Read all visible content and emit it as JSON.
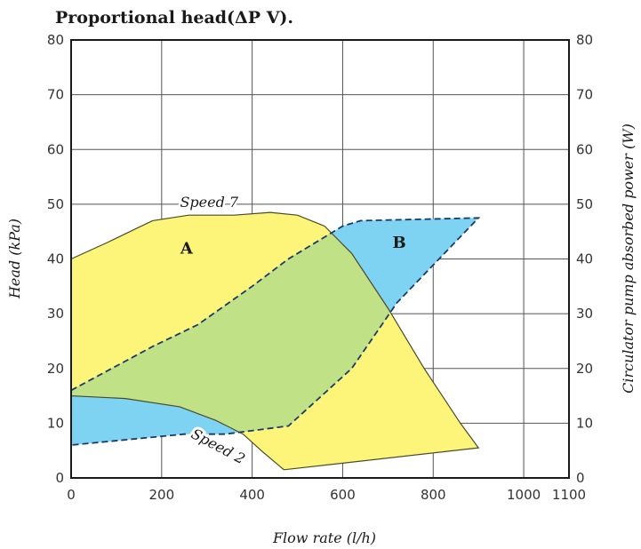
{
  "chart_data": {
    "type": "area",
    "title": "Proportional head(ΔP V).",
    "xlabel": "Flow rate (l/h)",
    "ylabel": "Head (kPa)",
    "ylabel_right": "Circulator pump absorbed power (W)",
    "xlim": [
      0,
      1100
    ],
    "ylim": [
      0,
      80
    ],
    "ylim_right": [
      0,
      80
    ],
    "x_ticks": [
      0,
      200,
      400,
      600,
      800,
      1000,
      1100
    ],
    "y_ticks": [
      0,
      10,
      20,
      30,
      40,
      50,
      60,
      70,
      80
    ],
    "y_ticks_right": [
      0,
      10,
      20,
      30,
      40,
      50,
      60,
      70,
      80
    ],
    "grid": true,
    "regions": [
      {
        "name": "A",
        "axis": "left",
        "fill": "#fdf47a",
        "boundary": [
          [
            0,
            40
          ],
          [
            80,
            43
          ],
          [
            180,
            47
          ],
          [
            260,
            48
          ],
          [
            360,
            48
          ],
          [
            440,
            48.5
          ],
          [
            500,
            48
          ],
          [
            560,
            46
          ],
          [
            620,
            41
          ],
          [
            700,
            31
          ],
          [
            780,
            20
          ],
          [
            860,
            10
          ],
          [
            900,
            5.5
          ],
          [
            470,
            1.5
          ],
          [
            420,
            5
          ],
          [
            380,
            8
          ],
          [
            320,
            10.5
          ],
          [
            240,
            13
          ],
          [
            120,
            14.5
          ],
          [
            0,
            15
          ]
        ]
      },
      {
        "name": "B",
        "axis": "right",
        "fill": "#7fd3f2",
        "boundary": [
          [
            0,
            16
          ],
          [
            180,
            24
          ],
          [
            280,
            28
          ],
          [
            400,
            35
          ],
          [
            480,
            40
          ],
          [
            600,
            46
          ],
          [
            640,
            47
          ],
          [
            900,
            47.5
          ],
          [
            720,
            32
          ],
          [
            620,
            20
          ],
          [
            480,
            9.5
          ],
          [
            340,
            8
          ],
          [
            250,
            8
          ],
          [
            0,
            6
          ]
        ]
      }
    ],
    "annotations": [
      {
        "text": "Speed 7",
        "x": 305,
        "y": 49.5
      },
      {
        "text": "Speed 2",
        "x": 320,
        "y": 5
      },
      {
        "text": "A",
        "x": 255,
        "y": 41
      },
      {
        "text": "B",
        "x": 725,
        "y": 42
      }
    ]
  }
}
